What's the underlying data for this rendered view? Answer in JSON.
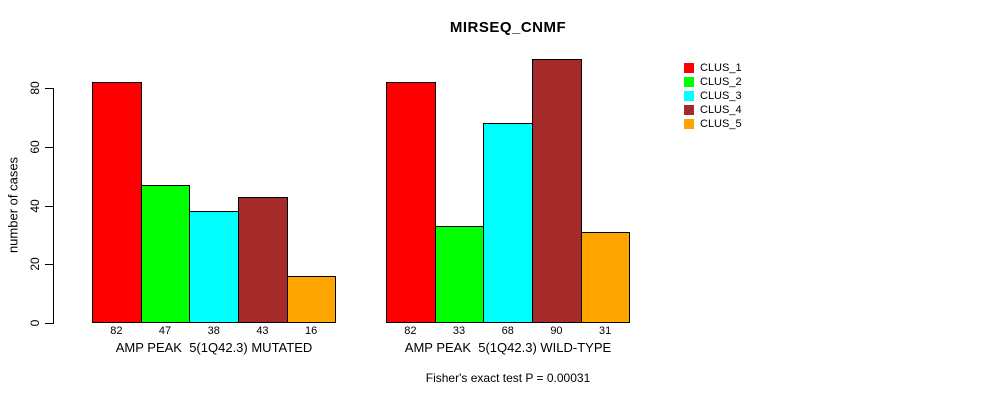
{
  "figure": {
    "title": "MIRSEQ_CNMF",
    "footnote": "Fisher's exact test P = 0.00031",
    "background": "#FFFFFF"
  },
  "legend": {
    "entries": [
      {
        "label": "CLUS_1",
        "color": "#FF0000"
      },
      {
        "label": "CLUS_2",
        "color": "#00FF00"
      },
      {
        "label": "CLUS_3",
        "color": "#00FFFF"
      },
      {
        "label": "CLUS_4",
        "color": "#A52A2A"
      },
      {
        "label": "CLUS_5",
        "color": "#FFA500"
      }
    ]
  },
  "chart_data": [
    {
      "type": "bar",
      "title": "MIRSEQ_CNMF",
      "categories": [
        "CLUS_1",
        "CLUS_2",
        "CLUS_3",
        "CLUS_4",
        "CLUS_5"
      ],
      "values": [
        82,
        47,
        38,
        43,
        16
      ],
      "bar_colors": [
        "#FF0000",
        "#00FF00",
        "#00FFFF",
        "#A52A2A",
        "#FFA500"
      ],
      "xlabel": "AMP PEAK  5(1Q42.3) MUTATED",
      "ylabel": "number of cases",
      "ylim": [
        0,
        90
      ],
      "yticks": [
        0,
        20,
        40,
        60,
        80
      ],
      "grid": false,
      "legend_position": "right-outside"
    },
    {
      "type": "bar",
      "title": "MIRSEQ_CNMF",
      "categories": [
        "CLUS_1",
        "CLUS_2",
        "CLUS_3",
        "CLUS_4",
        "CLUS_5"
      ],
      "values": [
        82,
        33,
        68,
        90,
        31
      ],
      "bar_colors": [
        "#FF0000",
        "#00FF00",
        "#00FFFF",
        "#A52A2A",
        "#FFA500"
      ],
      "xlabel": "AMP PEAK  5(1Q42.3) WILD-TYPE",
      "ylabel": "number of cases",
      "ylim": [
        0,
        90
      ],
      "yticks": [
        0,
        20,
        40,
        60,
        80
      ],
      "grid": false,
      "legend_position": "right-outside"
    }
  ]
}
